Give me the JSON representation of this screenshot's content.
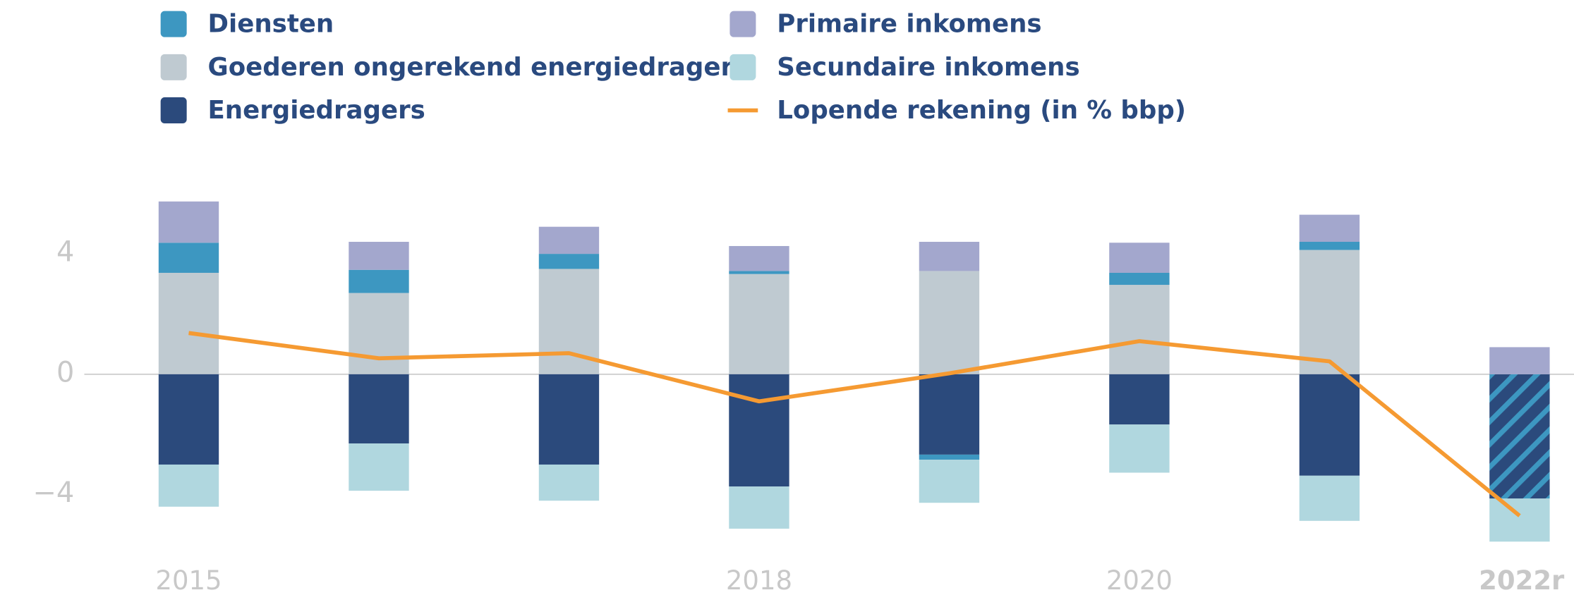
{
  "chart_data": {
    "type": "stacked_bar_line",
    "categories": [
      "2015",
      null,
      null,
      "2018",
      null,
      "2020",
      null,
      "2022r"
    ],
    "series": [
      {
        "name": "Diensten",
        "color": "#3d97c1",
        "values": [
          1.0,
          0.77,
          0.5,
          0.1,
          -0.17,
          0.4,
          0.27,
          null
        ]
      },
      {
        "name": "Goederen ongerekend energiedragers",
        "color": "#bfcad1",
        "values": [
          3.37,
          2.7,
          3.5,
          3.33,
          3.43,
          2.97,
          4.13,
          null
        ]
      },
      {
        "name": "Energiedragers",
        "color": "#2b4a7c",
        "values": [
          -3.0,
          -2.3,
          -3.0,
          -3.73,
          -2.67,
          -1.67,
          -3.37,
          -4.13
        ],
        "hatched": [
          7
        ]
      },
      {
        "name": "Primaire inkomens",
        "color": "#a3a7cd",
        "values": [
          1.37,
          0.93,
          0.9,
          0.83,
          0.97,
          1.0,
          0.9,
          0.9
        ]
      },
      {
        "name": "Secundaire inkomens",
        "color": "#b0d7df",
        "values": [
          -1.4,
          -1.57,
          -1.2,
          -1.4,
          -1.43,
          -1.6,
          -1.5,
          -1.43
        ]
      },
      {
        "name": "Lopende rekening (in % bbp)",
        "color": "#f59a32",
        "type": "line",
        "values": [
          1.37,
          0.53,
          0.7,
          -0.9,
          0.03,
          1.1,
          0.43,
          -4.7
        ]
      }
    ],
    "ylim": [
      -6,
      7
    ],
    "yticks": [
      4,
      0,
      {
        "value": -4,
        "label": "−4"
      }
    ],
    "grid": false
  }
}
